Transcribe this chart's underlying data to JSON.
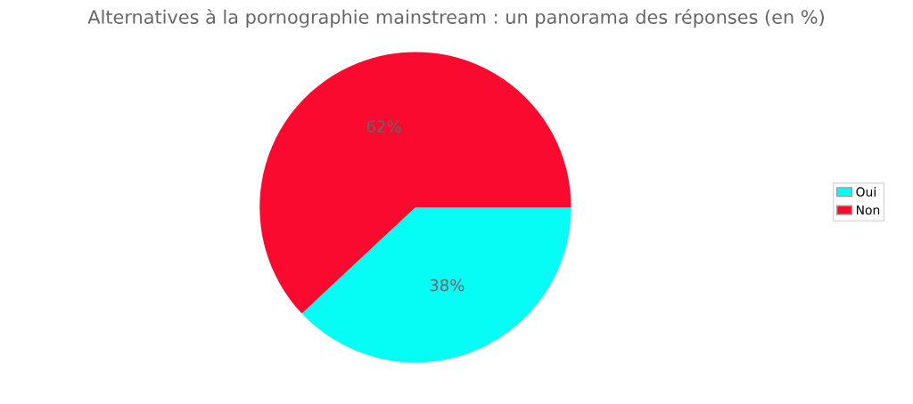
{
  "chart_data": {
    "type": "pie",
    "title": "Alternatives à la pornographie mainstream : un panorama des réponses (en %)",
    "categories": [
      "Oui",
      "Non"
    ],
    "values": [
      38,
      62
    ],
    "colors": [
      "#06fdf5",
      "#f90a2e"
    ],
    "value_labels": [
      "38%",
      "62%"
    ],
    "legend": "right"
  }
}
